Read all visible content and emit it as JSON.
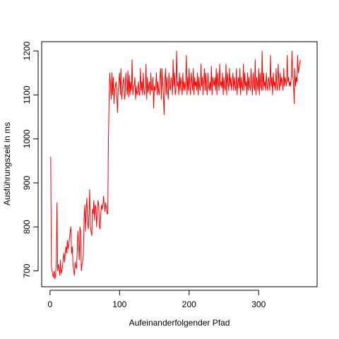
{
  "chart_data": {
    "type": "line",
    "xlabel": "Aufeinanderfolgender Pfad",
    "ylabel": "Ausführungszeit in ms",
    "xlim": [
      -12,
      384
    ],
    "ylim": [
      664,
      1221
    ],
    "xticks": [
      0,
      100,
      200,
      300
    ],
    "yticks": [
      700,
      800,
      900,
      1000,
      1100,
      1200
    ],
    "grid": false,
    "box": true,
    "series": [
      {
        "color": "#ff0000",
        "x_start": 1,
        "x_step": 1,
        "values": [
          960,
          710,
          700,
          690,
          685,
          700,
          682,
          690,
          720,
          855,
          700,
          715,
          705,
          690,
          725,
          695,
          700,
          710,
          730,
          740,
          720,
          745,
          755,
          740,
          770,
          750,
          760,
          775,
          790,
          800,
          740,
          755,
          715,
          700,
          690,
          720,
          710,
          705,
          740,
          790,
          760,
          725,
          800,
          790,
          700,
          715,
          720,
          740,
          820,
          850,
          790,
          840,
          865,
          810,
          795,
          830,
          885,
          800,
          790,
          780,
          840,
          830,
          860,
          815,
          850,
          845,
          800,
          830,
          860,
          850,
          800,
          795,
          830,
          850,
          840,
          850,
          870,
          850,
          835,
          855,
          845,
          830,
          830,
          1000,
          1100,
          1150,
          1120,
          1090,
          1150,
          1100,
          1140,
          1080,
          1110,
          1120,
          1130,
          1100,
          1060,
          1110,
          1130,
          1150,
          1100,
          1160,
          1090,
          1110,
          1130,
          1140,
          1090,
          1100,
          1150,
          1120,
          1100,
          1155,
          1095,
          1145,
          1100,
          1130,
          1110,
          1180,
          1100,
          1120,
          1120,
          1140,
          1090,
          1120,
          1100,
          1110,
          1130,
          1100,
          1100,
          1160,
          1110,
          1130,
          1100,
          1150,
          1110,
          1100,
          1120,
          1170,
          1090,
          1140,
          1105,
          1120,
          1130,
          1100,
          1150,
          1110,
          1110,
          1140,
          1070,
          1120,
          1110,
          1120,
          1150,
          1100,
          1130,
          1110,
          1100,
          1140,
          1160,
          1090,
          1160,
          1130,
          1100,
          1055,
          1130,
          1160,
          1100,
          1140,
          1110,
          1090,
          1150,
          1120,
          1110,
          1140,
          1130,
          1100,
          1180,
          1120,
          1150,
          1100,
          1110,
          1200,
          1120,
          1130,
          1100,
          1150,
          1110,
          1140,
          1120,
          1100,
          1150,
          1110,
          1130,
          1110,
          1130,
          1190,
          1100,
          1140,
          1110,
          1160,
          1120,
          1100,
          1150,
          1130,
          1110,
          1160,
          1100,
          1140,
          1120,
          1130,
          1110,
          1150,
          1100,
          1140,
          1120,
          1110,
          1170,
          1120,
          1140,
          1100,
          1130,
          1160,
          1110,
          1150,
          1120,
          1100,
          1150,
          1120,
          1110,
          1130,
          1110,
          1165,
          1100,
          1140,
          1130,
          1120,
          1140,
          1110,
          1160,
          1100,
          1150,
          1130,
          1110,
          1170,
          1120,
          1130,
          1115,
          1150,
          1100,
          1140,
          1120,
          1110,
          1170,
          1100,
          1150,
          1130,
          1110,
          1160,
          1120,
          1140,
          1110,
          1130,
          1150,
          1110,
          1140,
          1120,
          1110,
          1160,
          1100,
          1130,
          1140,
          1115,
          1160,
          1100,
          1140,
          1120,
          1110,
          1170,
          1110,
          1150,
          1120,
          1130,
          1100,
          1150,
          1110,
          1140,
          1120,
          1110,
          1160,
          1130,
          1100,
          1150,
          1120,
          1110,
          1180,
          1100,
          1140,
          1130,
          1110,
          1160,
          1100,
          1150,
          1120,
          1110,
          1200,
          1110,
          1150,
          1120,
          1130,
          1110,
          1150,
          1120,
          1110,
          1140,
          1130,
          1110,
          1190,
          1120,
          1140,
          1100,
          1150,
          1120,
          1130,
          1110,
          1160,
          1120,
          1110,
          1170,
          1130,
          1110,
          1150,
          1120,
          1140,
          1130,
          1110,
          1160,
          1120,
          1140,
          1130,
          1120,
          1190,
          1130,
          1140,
          1120,
          1130,
          1120,
          1150,
          1200,
          1140,
          1130,
          1080,
          1160,
          1120,
          1140,
          1130,
          1190,
          1150,
          1160,
          1170,
          1180
        ]
      }
    ]
  }
}
